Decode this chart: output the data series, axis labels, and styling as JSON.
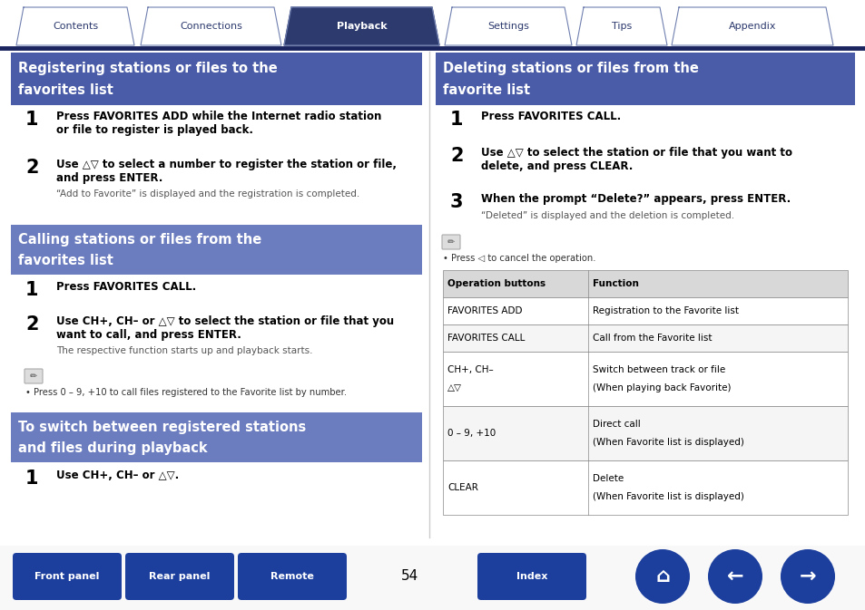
{
  "bg_color": "#ffffff",
  "tab_active_color": "#2d3a6e",
  "tab_inactive_color": "#ffffff",
  "tab_border_color": "#7080b0",
  "tab_labels": [
    "Contents",
    "Connections",
    "Playback",
    "Settings",
    "Tips",
    "Appendix"
  ],
  "tab_active_index": 2,
  "header_line_color": "#1a2560",
  "section_dark_color": "#4a5ca8",
  "section_mid_color": "#6b7cbf",
  "page_number": "54",
  "btn_labels_left": [
    "Front panel",
    "Rear panel",
    "Remote"
  ],
  "btn_label_mid": "Index",
  "btn_color": "#1c3f9e",
  "table_header_bg": "#d8d8d8",
  "table_border_color": "#888888",
  "fig_w": 9.54,
  "fig_h": 6.73,
  "dpi": 100
}
